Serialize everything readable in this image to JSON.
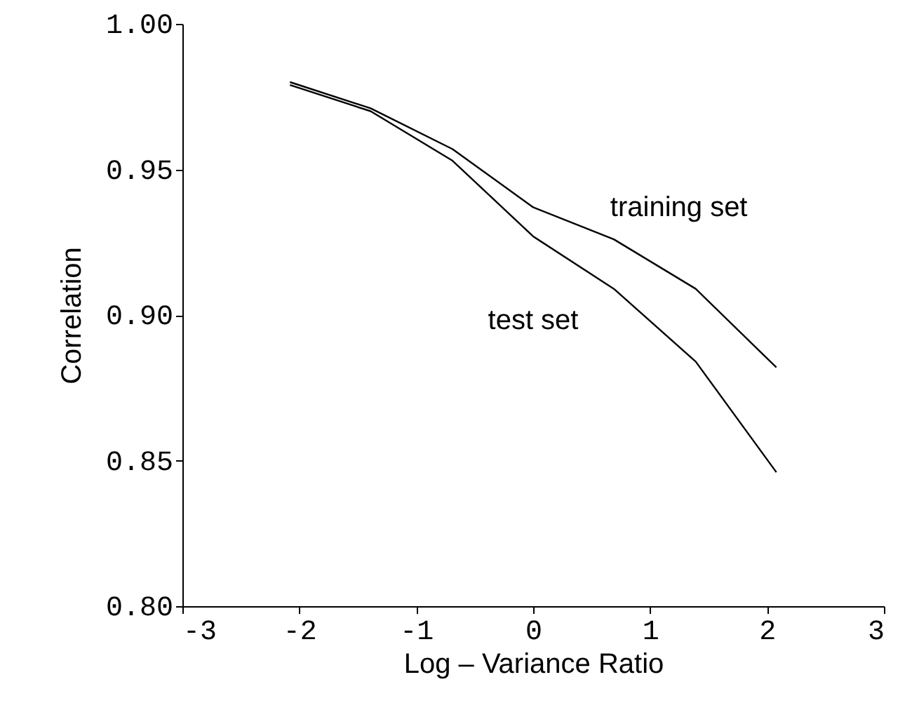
{
  "chart_data": {
    "type": "line",
    "xlabel": "Log – Variance Ratio",
    "ylabel": "Correlation",
    "x": [
      -2.08,
      -1.39,
      -0.69,
      0,
      0.69,
      1.39,
      2.08
    ],
    "series": [
      {
        "name": "training set",
        "color": "#000000",
        "values": [
          0.98,
          0.971,
          0.957,
          0.937,
          0.926,
          0.909,
          0.882
        ]
      },
      {
        "name": "test set",
        "color": "#000000",
        "values": [
          0.979,
          0.97,
          0.953,
          0.927,
          0.909,
          0.884,
          0.846
        ]
      }
    ],
    "xlim": [
      -3,
      3
    ],
    "xticks": [
      -3,
      -2,
      -1,
      0,
      1,
      2,
      3
    ],
    "ylim": [
      0.8,
      1.0
    ],
    "yticks": [
      {
        "value": 0.8,
        "label": "0.80"
      },
      {
        "value": 0.85,
        "label": "0.85"
      },
      {
        "value": 0.9,
        "label": "0.90"
      },
      {
        "value": 0.95,
        "label": "0.95"
      },
      {
        "value": 1.0,
        "label": "1.00"
      }
    ],
    "grid": false,
    "marker": "none",
    "line_style": "solid"
  }
}
